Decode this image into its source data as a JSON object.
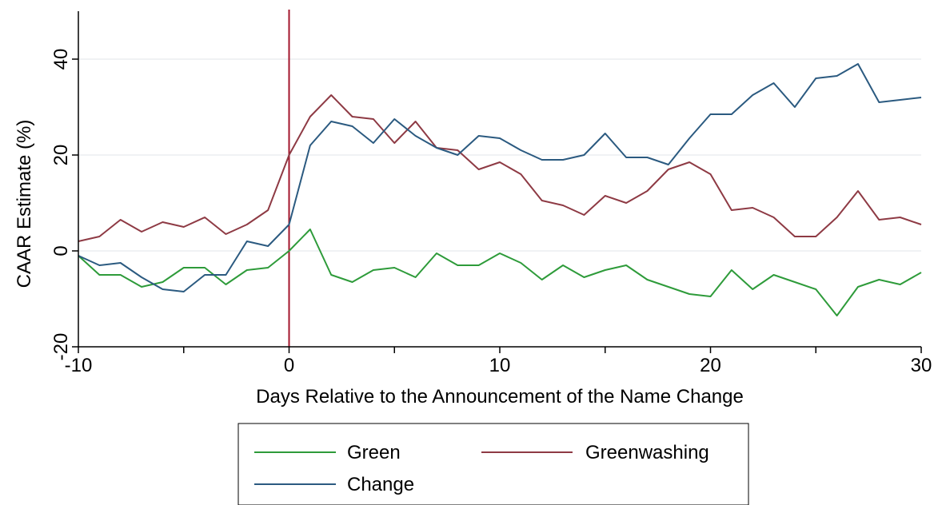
{
  "chart_data": {
    "type": "line",
    "title": "",
    "xlabel": "Days Relative to the Announcement of the Name Change",
    "ylabel": "CAAR Estimate (%)",
    "xlim": [
      -10,
      30
    ],
    "ylim": [
      -20,
      50
    ],
    "xticks": [
      -10,
      0,
      10,
      20,
      30
    ],
    "yticks": [
      -20,
      0,
      20,
      40
    ],
    "grid": "horizontal",
    "vline": {
      "x": 0,
      "color": "#a3162c"
    },
    "legend": {
      "placement": "bottom"
    },
    "x": [
      -10,
      -9,
      -8,
      -7,
      -6,
      -5,
      -4,
      -3,
      -2,
      -1,
      0,
      1,
      2,
      3,
      4,
      5,
      6,
      7,
      8,
      9,
      10,
      11,
      12,
      13,
      14,
      15,
      16,
      17,
      18,
      19,
      20,
      21,
      22,
      23,
      24,
      25,
      26,
      27,
      28,
      29,
      30
    ],
    "series": [
      {
        "name": "Green",
        "color": "#2e9b3a",
        "values": [
          -1,
          -5,
          -5,
          -7.5,
          -6.5,
          -3.5,
          -3.5,
          -7,
          -4,
          -3.5,
          0,
          4.5,
          -5,
          -6.5,
          -4,
          -3.5,
          -5.5,
          -0.5,
          -3,
          -3,
          -0.5,
          -2.5,
          -6,
          -3,
          -5.5,
          -4,
          -3,
          -6,
          -7.5,
          -9,
          -9.5,
          -4,
          -8,
          -5,
          -6.5,
          -8,
          -13.5,
          -7.5,
          -6,
          -7,
          -4.5
        ]
      },
      {
        "name": "Greenwashing",
        "color": "#8e3a44",
        "values": [
          2,
          3,
          6.5,
          4,
          6,
          5,
          7,
          3.5,
          5.5,
          8.5,
          20,
          28,
          32.5,
          28,
          27.5,
          22.5,
          27,
          21.5,
          21,
          17,
          18.5,
          16,
          10.5,
          9.5,
          7.5,
          11.5,
          10,
          12.5,
          17,
          18.5,
          16,
          8.5,
          9,
          7,
          3,
          3,
          7,
          12.5,
          6.5,
          7,
          5.5
        ]
      },
      {
        "name": "Change",
        "color": "#2b5a80",
        "values": [
          -1,
          -3,
          -2.5,
          -5.5,
          -8,
          -8.5,
          -5,
          -5,
          2,
          1,
          5.5,
          22,
          27,
          26,
          22.5,
          27.5,
          24,
          21.5,
          20,
          24,
          23.5,
          21,
          19,
          19,
          20,
          24.5,
          19.5,
          19.5,
          18,
          23.5,
          28.5,
          28.5,
          32.5,
          35,
          30,
          36,
          36.5,
          39,
          31,
          31.5,
          32
        ]
      }
    ]
  }
}
